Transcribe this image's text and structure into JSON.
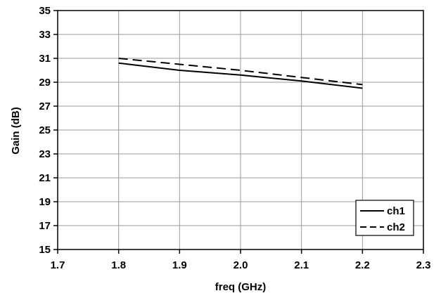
{
  "chart_data": {
    "type": "line",
    "title": "",
    "xlabel": "freq (GHz)",
    "ylabel": "Gain (dB)",
    "xlim": [
      1.7,
      2.3
    ],
    "ylim": [
      15,
      35
    ],
    "x_ticks": [
      "1.7",
      "1.8",
      "1.9",
      "2.0",
      "2.1",
      "2.2",
      "2.3"
    ],
    "y_ticks": [
      "15",
      "17",
      "19",
      "21",
      "23",
      "25",
      "27",
      "29",
      "31",
      "33",
      "35"
    ],
    "grid": true,
    "legend_position": "bottom-right",
    "series": [
      {
        "name": "ch1",
        "style": "solid",
        "color": "#000000",
        "x": [
          1.8,
          1.9,
          2.0,
          2.1,
          2.2
        ],
        "y": [
          30.6,
          30.0,
          29.6,
          29.1,
          28.5
        ]
      },
      {
        "name": "ch2",
        "style": "dashed",
        "color": "#000000",
        "x": [
          1.8,
          1.9,
          2.0,
          2.1,
          2.2
        ],
        "y": [
          31.0,
          30.5,
          30.0,
          29.4,
          28.8
        ]
      }
    ]
  }
}
